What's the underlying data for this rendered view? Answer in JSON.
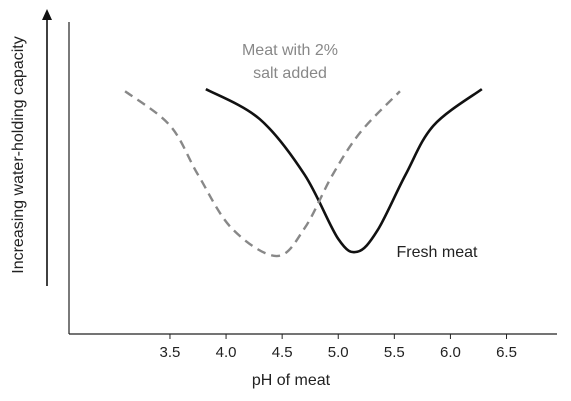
{
  "chart_data": {
    "type": "line",
    "xlabel": "pH of meat",
    "ylabel": "Increasing water-holding capacity",
    "xlim": [
      2.6,
      6.95
    ],
    "ylim": [
      0,
      1
    ],
    "x_ticks": [
      "3.5",
      "4.0",
      "4.5",
      "5.0",
      "5.5",
      "6.0",
      "6.5"
    ],
    "grid": false,
    "series": [
      {
        "name": "Fresh meat",
        "color": "#111111",
        "style": "solid",
        "points": [
          [
            3.82,
            0.92
          ],
          [
            4.3,
            0.78
          ],
          [
            4.7,
            0.52
          ],
          [
            5.0,
            0.22
          ],
          [
            5.17,
            0.16
          ],
          [
            5.35,
            0.26
          ],
          [
            5.6,
            0.52
          ],
          [
            5.85,
            0.75
          ],
          [
            6.28,
            0.92
          ]
        ]
      },
      {
        "name": "Meat with 2% salt added",
        "color": "#888888",
        "style": "dashed",
        "points": [
          [
            3.1,
            0.91
          ],
          [
            3.5,
            0.75
          ],
          [
            3.75,
            0.52
          ],
          [
            4.05,
            0.27
          ],
          [
            4.45,
            0.14
          ],
          [
            4.7,
            0.27
          ],
          [
            4.95,
            0.52
          ],
          [
            5.2,
            0.72
          ],
          [
            5.55,
            0.91
          ]
        ]
      }
    ],
    "annotations": [
      {
        "series": "Meat with 2% salt added",
        "lines": [
          "Meat with 2%",
          "salt added"
        ],
        "color": "#888888"
      },
      {
        "series": "Fresh meat",
        "lines": [
          "Fresh meat"
        ],
        "color": "#222222"
      }
    ]
  }
}
